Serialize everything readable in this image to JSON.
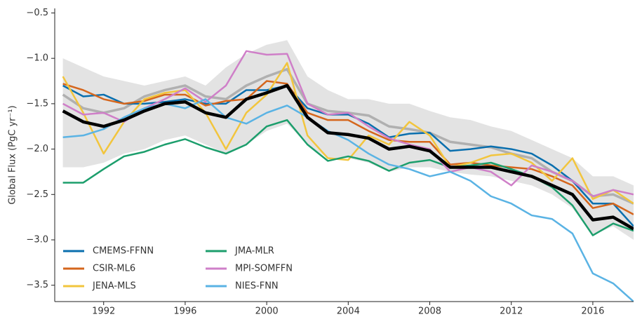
{
  "chart_data": {
    "type": "line",
    "y_label": "Global Flux (PgC yr⁻¹)",
    "x": [
      1990,
      1991,
      1992,
      1993,
      1994,
      1995,
      1996,
      1997,
      1998,
      1999,
      2000,
      2001,
      2002,
      2003,
      2004,
      2005,
      2006,
      2007,
      2008,
      2009,
      2010,
      2011,
      2012,
      2013,
      2014,
      2015,
      2016,
      2017,
      2018
    ],
    "xlim": [
      1989.6,
      2018
    ],
    "xticks": [
      1992,
      1996,
      2000,
      2004,
      2008,
      2012,
      2016
    ],
    "ylim": [
      -3.68,
      -0.45
    ],
    "yticks": [
      {
        "value": -0.5,
        "label": "−0.5"
      },
      {
        "value": -1.0,
        "label": "−1.0"
      },
      {
        "value": -1.5,
        "label": "−1.5"
      },
      {
        "value": -2.0,
        "label": "−2.0"
      },
      {
        "value": -2.5,
        "label": "−2.5"
      },
      {
        "value": -3.0,
        "label": "−3.0"
      },
      {
        "value": -3.5,
        "label": "−3.5"
      }
    ],
    "legend": "lower left",
    "band": {
      "color": "#e3e3e3",
      "upper": [
        -1.0,
        -1.1,
        -1.2,
        -1.25,
        -1.3,
        -1.25,
        -1.2,
        -1.3,
        -1.1,
        -0.95,
        -0.85,
        -0.8,
        -1.2,
        -1.35,
        -1.45,
        -1.45,
        -1.5,
        -1.5,
        -1.58,
        -1.65,
        -1.68,
        -1.75,
        -1.8,
        -1.9,
        -2.0,
        -2.1,
        -2.3,
        -2.3,
        -2.4
      ],
      "lower": [
        -2.2,
        -2.2,
        -2.15,
        -2.05,
        -2.0,
        -1.9,
        -1.85,
        -1.95,
        -2.05,
        -1.95,
        -1.8,
        -1.72,
        -1.95,
        -2.1,
        -2.1,
        -2.15,
        -2.25,
        -2.2,
        -2.2,
        -2.25,
        -2.28,
        -2.3,
        -2.35,
        -2.4,
        -2.5,
        -2.65,
        -2.95,
        -2.85,
        -3.0
      ]
    },
    "series": [
      {
        "color": "#b0b0b0",
        "width": 3.5,
        "values": [
          -1.4,
          -1.55,
          -1.6,
          -1.55,
          -1.42,
          -1.35,
          -1.3,
          -1.42,
          -1.45,
          -1.3,
          -1.2,
          -1.12,
          -1.5,
          -1.58,
          -1.6,
          -1.63,
          -1.75,
          -1.78,
          -1.82,
          -1.92,
          -1.95,
          -1.98,
          -2.05,
          -2.1,
          -2.25,
          -2.35,
          -2.52,
          -2.5,
          -2.6
        ]
      },
      {
        "name": "CMEMS-FFNN",
        "color": "#0a6fae",
        "values": [
          -1.3,
          -1.42,
          -1.4,
          -1.5,
          -1.5,
          -1.48,
          -1.45,
          -1.5,
          -1.5,
          -1.35,
          -1.35,
          -1.3,
          -1.55,
          -1.62,
          -1.62,
          -1.72,
          -1.87,
          -1.83,
          -1.82,
          -2.02,
          -2.0,
          -1.97,
          -2.0,
          -2.05,
          -2.18,
          -2.35,
          -2.6,
          -2.6,
          -2.85
        ]
      },
      {
        "name": "CSIR-ML6",
        "color": "#d5661d",
        "values": [
          -1.28,
          -1.35,
          -1.45,
          -1.5,
          -1.47,
          -1.4,
          -1.4,
          -1.52,
          -1.47,
          -1.45,
          -1.25,
          -1.28,
          -1.6,
          -1.68,
          -1.68,
          -1.8,
          -1.9,
          -1.92,
          -1.92,
          -2.17,
          -2.15,
          -2.18,
          -2.2,
          -2.22,
          -2.3,
          -2.4,
          -2.65,
          -2.6,
          -2.72
        ]
      },
      {
        "name": "JENA-MLS",
        "color": "#f2c53d",
        "values": [
          -1.2,
          -1.6,
          -2.05,
          -1.7,
          -1.45,
          -1.38,
          -1.35,
          -1.6,
          -2.0,
          -1.6,
          -1.4,
          -1.05,
          -1.85,
          -2.1,
          -2.12,
          -1.85,
          -1.95,
          -1.7,
          -1.85,
          -2.2,
          -2.15,
          -2.07,
          -2.05,
          -2.15,
          -2.35,
          -2.1,
          -2.55,
          -2.45,
          -2.6
        ]
      },
      {
        "name": "JMA-MLR",
        "color": "#1c9e6c",
        "values": [
          -2.37,
          -2.37,
          -2.22,
          -2.08,
          -2.03,
          -1.95,
          -1.89,
          -1.98,
          -2.05,
          -1.95,
          -1.75,
          -1.68,
          -1.95,
          -2.13,
          -2.08,
          -2.13,
          -2.24,
          -2.15,
          -2.12,
          -2.2,
          -2.18,
          -2.15,
          -2.22,
          -2.3,
          -2.42,
          -2.62,
          -2.95,
          -2.82,
          -2.9
        ]
      },
      {
        "name": "MPI-SOMFFN",
        "color": "#cf7fc8",
        "values": [
          -1.5,
          -1.62,
          -1.6,
          -1.7,
          -1.55,
          -1.45,
          -1.33,
          -1.48,
          -1.3,
          -0.92,
          -0.96,
          -0.95,
          -1.5,
          -1.62,
          -1.6,
          -1.75,
          -1.88,
          -1.95,
          -2.0,
          -2.25,
          -2.2,
          -2.25,
          -2.4,
          -2.18,
          -2.25,
          -2.35,
          -2.52,
          -2.45,
          -2.5
        ]
      },
      {
        "name": "NIES-FNN",
        "color": "#5ab3e4",
        "values": [
          -1.87,
          -1.85,
          -1.78,
          -1.65,
          -1.55,
          -1.5,
          -1.55,
          -1.45,
          -1.65,
          -1.72,
          -1.6,
          -1.52,
          -1.65,
          -1.8,
          -1.9,
          -2.05,
          -2.17,
          -2.22,
          -2.3,
          -2.25,
          -2.35,
          -2.52,
          -2.6,
          -2.73,
          -2.77,
          -2.93,
          -3.37,
          -3.48,
          -3.68
        ]
      },
      {
        "color": "#000000",
        "width": 4.5,
        "values": [
          -1.58,
          -1.7,
          -1.75,
          -1.68,
          -1.58,
          -1.5,
          -1.48,
          -1.6,
          -1.65,
          -1.45,
          -1.38,
          -1.3,
          -1.65,
          -1.82,
          -1.84,
          -1.88,
          -2.0,
          -1.97,
          -2.02,
          -2.2,
          -2.2,
          -2.2,
          -2.25,
          -2.3,
          -2.4,
          -2.5,
          -2.78,
          -2.75,
          -2.88
        ]
      }
    ]
  }
}
